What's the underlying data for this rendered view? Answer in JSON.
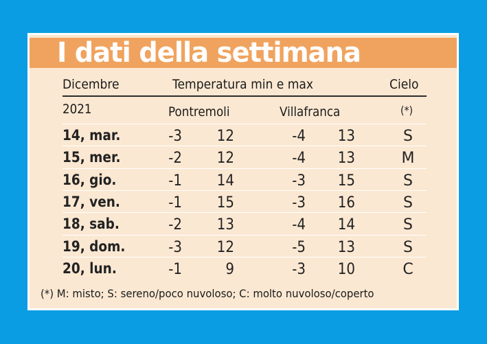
{
  "title": "I dati della settimana",
  "header": {
    "date_label": "Dicembre",
    "temperature_label": "Temperatura min e max",
    "sky_label": "Cielo",
    "year": "2021",
    "city1": "Pontremoli",
    "city2": "Villafranca",
    "sky_note_marker": "(*)"
  },
  "rows": [
    {
      "day": "14, mar.",
      "pont_min": "-3",
      "pont_max": "12",
      "vill_min": "-4",
      "vill_max": "13",
      "sky": "S"
    },
    {
      "day": "15, mer.",
      "pont_min": "-2",
      "pont_max": "12",
      "vill_min": "-4",
      "vill_max": "13",
      "sky": "M"
    },
    {
      "day": "16, gio.",
      "pont_min": "-1",
      "pont_max": "14",
      "vill_min": "-3",
      "vill_max": "15",
      "sky": "S"
    },
    {
      "day": "17, ven.",
      "pont_min": "-1",
      "pont_max": "15",
      "vill_min": "-3",
      "vill_max": "16",
      "sky": "S"
    },
    {
      "day": "18, sab.",
      "pont_min": "-2",
      "pont_max": "13",
      "vill_min": "-4",
      "vill_max": "14",
      "sky": "S"
    },
    {
      "day": "19, dom.",
      "pont_min": "-3",
      "pont_max": "12",
      "vill_min": "-5",
      "vill_max": "13",
      "sky": "S"
    },
    {
      "day": "20, lun.",
      "pont_min": "-1",
      "pont_max": "9",
      "vill_min": "-3",
      "vill_max": "10",
      "sky": "C"
    }
  ],
  "footnote": "(*) M: misto; S: sereno/poco nuvoloso; C: molto nuvoloso/coperto",
  "colors": {
    "background": "#0a9de3",
    "card": "#fbe8d2",
    "title_band": "#f0a35e",
    "title_text": "#ffffff"
  }
}
